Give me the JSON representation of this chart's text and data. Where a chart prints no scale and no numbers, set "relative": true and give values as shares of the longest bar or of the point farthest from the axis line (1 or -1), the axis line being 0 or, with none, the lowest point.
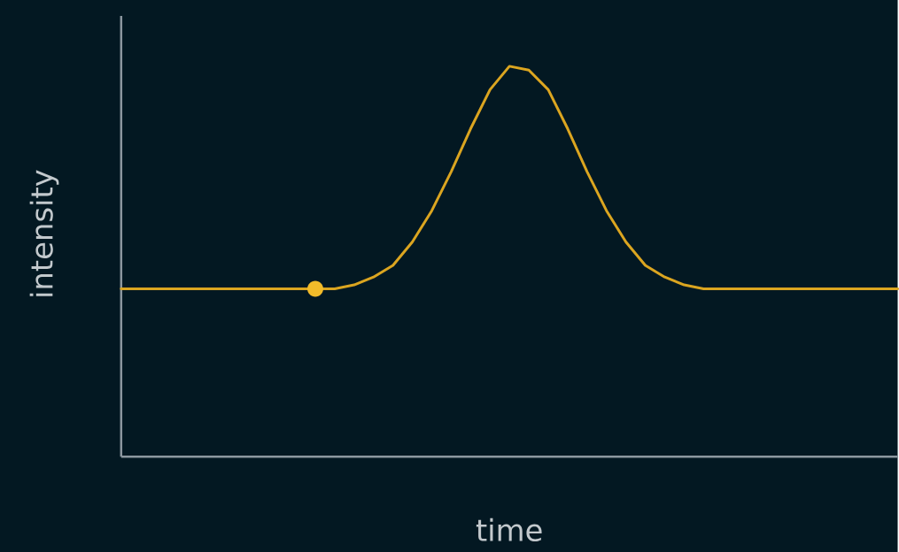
{
  "chart_data": {
    "type": "line",
    "xlabel": "time",
    "ylabel": "intensity",
    "relative": true,
    "categories": [
      null,
      null,
      null,
      null,
      null,
      null,
      null,
      null,
      null,
      null,
      null,
      null,
      null,
      null,
      null,
      null,
      null,
      null,
      null,
      null,
      null,
      null,
      null,
      null,
      null,
      null,
      null,
      null,
      null,
      null,
      null,
      null,
      null,
      null,
      null,
      null,
      null,
      null,
      null,
      null,
      null
    ],
    "series": [
      {
        "color": "#dba520",
        "values": [
          0.43,
          0.43,
          0.43,
          0.43,
          0.43,
          0.43,
          0.43,
          0.43,
          0.43,
          0.43,
          0.43,
          0.43,
          0.44,
          0.46,
          0.49,
          0.55,
          0.63,
          0.73,
          0.84,
          0.94,
          1,
          0.99,
          0.94,
          0.84,
          0.73,
          0.63,
          0.55,
          0.49,
          0.46,
          0.44,
          0.43,
          0.43,
          0.43,
          0.43,
          0.43,
          0.43,
          0.43,
          0.43,
          0.43,
          0.43,
          0.43
        ]
      }
    ]
  }
}
